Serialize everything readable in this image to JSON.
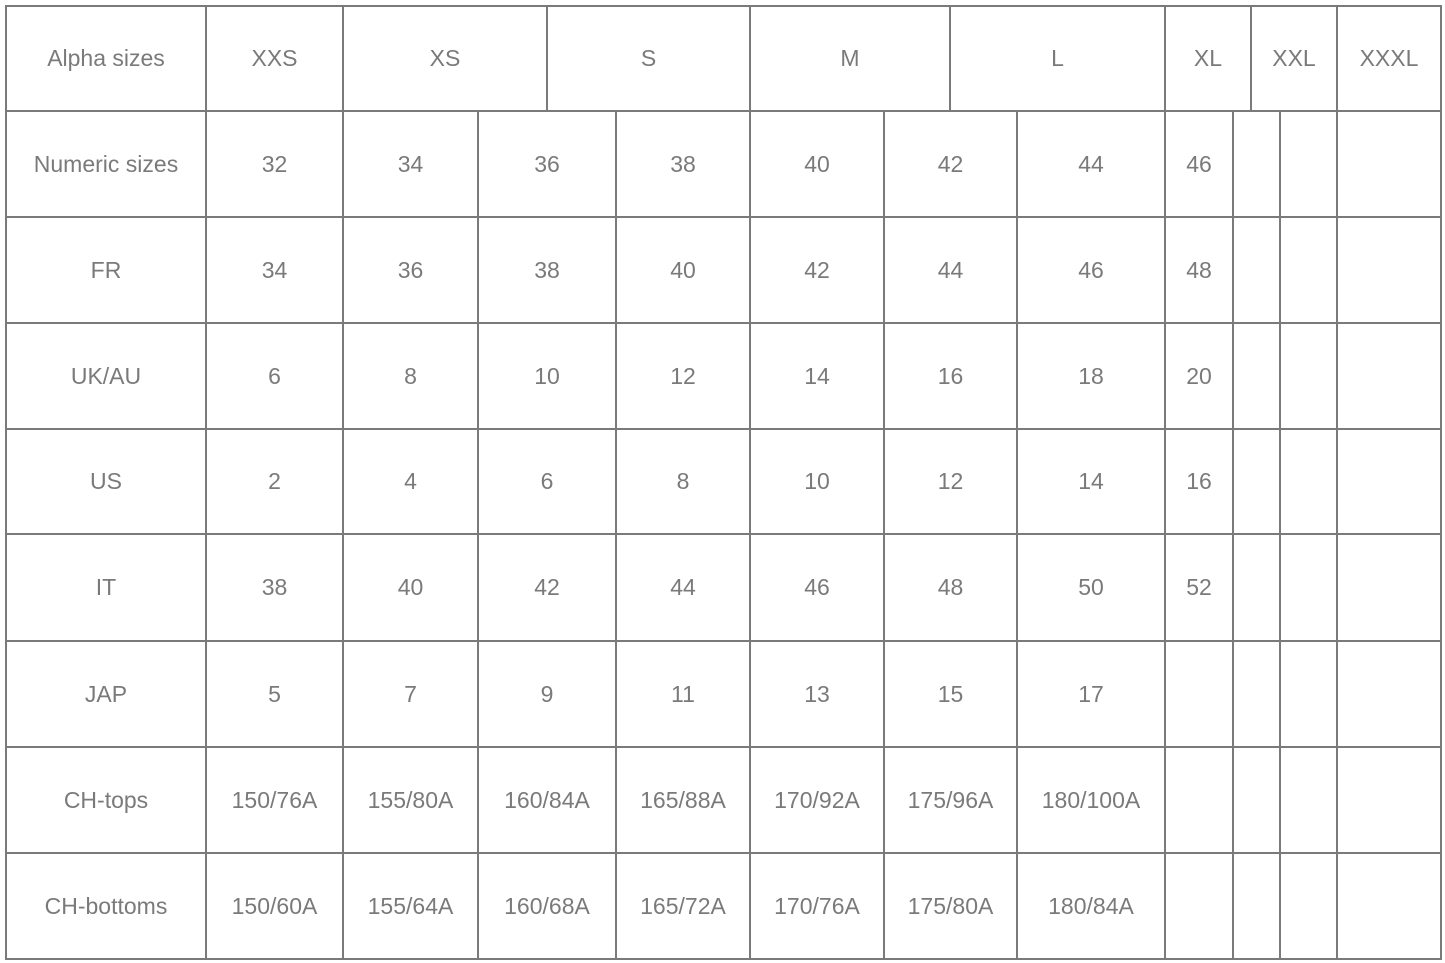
{
  "header": {
    "label": "Alpha sizes",
    "sizes": [
      "XXS",
      "XS",
      "S",
      "M",
      "L",
      "XL",
      "XXL",
      "XXXL"
    ]
  },
  "rows": [
    {
      "label": "Numeric sizes",
      "values": [
        "32",
        "34",
        "36",
        "38",
        "40",
        "42",
        "44",
        "46",
        "",
        "",
        ""
      ]
    },
    {
      "label": "FR",
      "values": [
        "34",
        "36",
        "38",
        "40",
        "42",
        "44",
        "46",
        "48",
        "",
        "",
        ""
      ]
    },
    {
      "label": "UK/AU",
      "values": [
        "6",
        "8",
        "10",
        "12",
        "14",
        "16",
        "18",
        "20",
        "",
        "",
        ""
      ]
    },
    {
      "label": "US",
      "values": [
        "2",
        "4",
        "6",
        "8",
        "10",
        "12",
        "14",
        "16",
        "",
        "",
        ""
      ]
    },
    {
      "label": "IT",
      "values": [
        "38",
        "40",
        "42",
        "44",
        "46",
        "48",
        "50",
        "52",
        "",
        "",
        ""
      ]
    },
    {
      "label": "JAP",
      "values": [
        "5",
        "7",
        "9",
        "11",
        "13",
        "15",
        "17",
        "",
        "",
        "",
        ""
      ]
    },
    {
      "label": "CH-tops",
      "values": [
        "150/76A",
        "155/80A",
        "160/84A",
        "165/88A",
        "170/92A",
        "175/96A",
        "180/100A",
        "",
        "",
        "",
        ""
      ]
    },
    {
      "label": "CH-bottoms",
      "values": [
        "150/60A",
        "155/64A",
        "160/68A",
        "165/72A",
        "170/76A",
        "175/80A",
        "180/84A",
        "",
        "",
        "",
        ""
      ]
    }
  ],
  "colors": {
    "line": "#7a7a7a",
    "text": "#7a7a7a"
  }
}
